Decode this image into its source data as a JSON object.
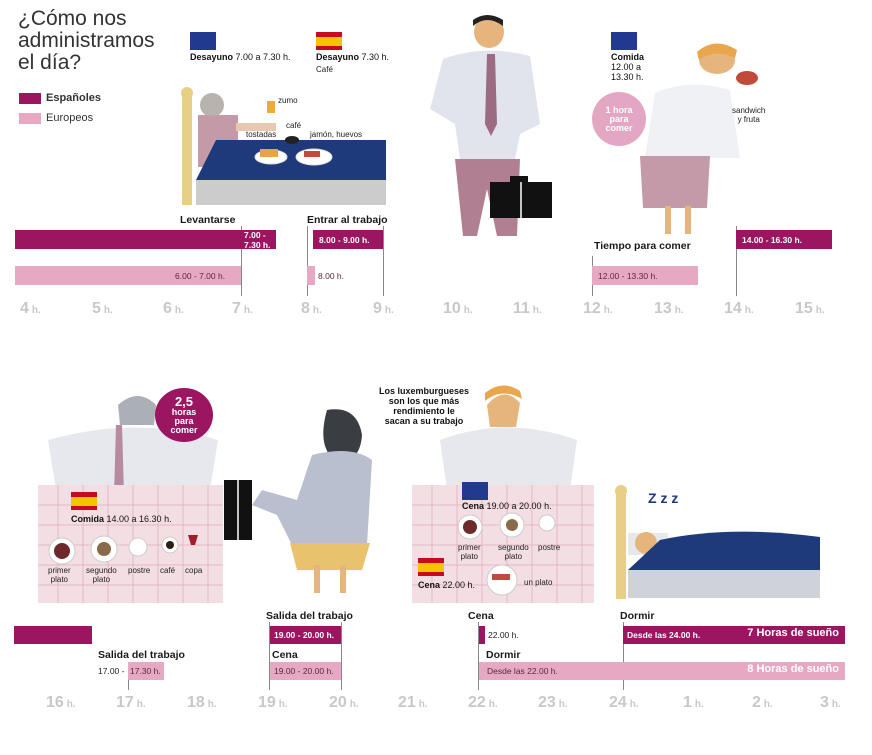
{
  "title": "¿Cómo nos administramos el día?",
  "legend": [
    {
      "label": "Españoles",
      "color": "#9c1560"
    },
    {
      "label": "Europeos",
      "color": "#e7a8c4"
    }
  ],
  "colors": {
    "spanish": "#9c1560",
    "european": "#e7a8c4",
    "axis": "#c8c8c8",
    "table": "#1f3a7a"
  },
  "top": {
    "hours": [
      "4",
      "5",
      "6",
      "7",
      "8",
      "9",
      "10",
      "11",
      "12",
      "13",
      "14",
      "15"
    ],
    "hour_unit": "h.",
    "labels": {
      "levantarse": "Levantarse",
      "entrar": "Entrar al trabajo",
      "tiempo": "Tiempo para comer"
    },
    "bars": {
      "es_wake": "7.00 -\n7.30 h.",
      "eu_wake": "6.00 - 7.00 h.",
      "es_work": "8.00 - 9.00 h.",
      "eu_work": "8.00 h.",
      "eu_lunch": "12.00 - 13.30 h.",
      "es_lunch": "14.00 - 16.30 h."
    },
    "annotations": {
      "eu_breakfast_b": "Desayuno",
      "eu_breakfast": " 7.00 a 7.30 h.",
      "es_breakfast_b": "Desayuno",
      "es_breakfast": " 7.30 h.",
      "es_breakfast_sub": "Café",
      "eu_lunch_b": "Comida",
      "eu_lunch": "12.00 a\n13.30 h.",
      "one_hour": "1 hora\npara\ncomer",
      "sandwich": "sandwich\ny fruta",
      "zumo": "zumo",
      "cafe": "café",
      "tostadas": "tostadas",
      "jamon": "jamón, huevos"
    }
  },
  "bottom": {
    "hours": [
      "16",
      "17",
      "18",
      "19",
      "20",
      "21",
      "22",
      "23",
      "24",
      "1",
      "2",
      "3"
    ],
    "hour_unit": "h.",
    "labels": {
      "salida_es": "Salida del trabajo",
      "cena_es": "Cena",
      "dormir_es": "Dormir",
      "salida_eu": "Salida del trabajo",
      "cena_eu": "Cena",
      "dormir_eu": "Dormir"
    },
    "bars": {
      "es_exit": "19.00 - 20.00 h.",
      "eu_exit_prefix": "17.00 - ",
      "eu_exit": "17.30 h.",
      "eu_dinner": "19.00 - 20.00 h.",
      "es_dinner": "22.00 h.",
      "es_sleep": "Desde las 24.00 h.",
      "es_sleep_hours": "7 Horas de sueño",
      "eu_sleep": "Desde las 22.00 h.",
      "eu_sleep_hours": "8 Horas de sueño"
    },
    "annotations": {
      "two_half": "2,5",
      "two_half_sub": "horas\npara\ncomer",
      "comida_b": "Comida",
      "comida": " 14.00 a 16.30 h.",
      "primer": "primer\nplato",
      "segundo": "segundo\nplato",
      "postre": "postre",
      "cafe": "café",
      "copa": "copa",
      "lux": "Los luxemburgueses\nson los que más\nrendimiento le\nsacan a su trabajo",
      "eu_cena_b": "Cena",
      "eu_cena": " 19.00 a 20.00 h.",
      "primer2": "primer\nplato",
      "segundo2": "segundo\nplato",
      "postre2": "postre",
      "es_cena_b": "Cena",
      "es_cena": " 22.00 h.",
      "un_plato": "un plato",
      "zzz": "Z z z"
    }
  }
}
